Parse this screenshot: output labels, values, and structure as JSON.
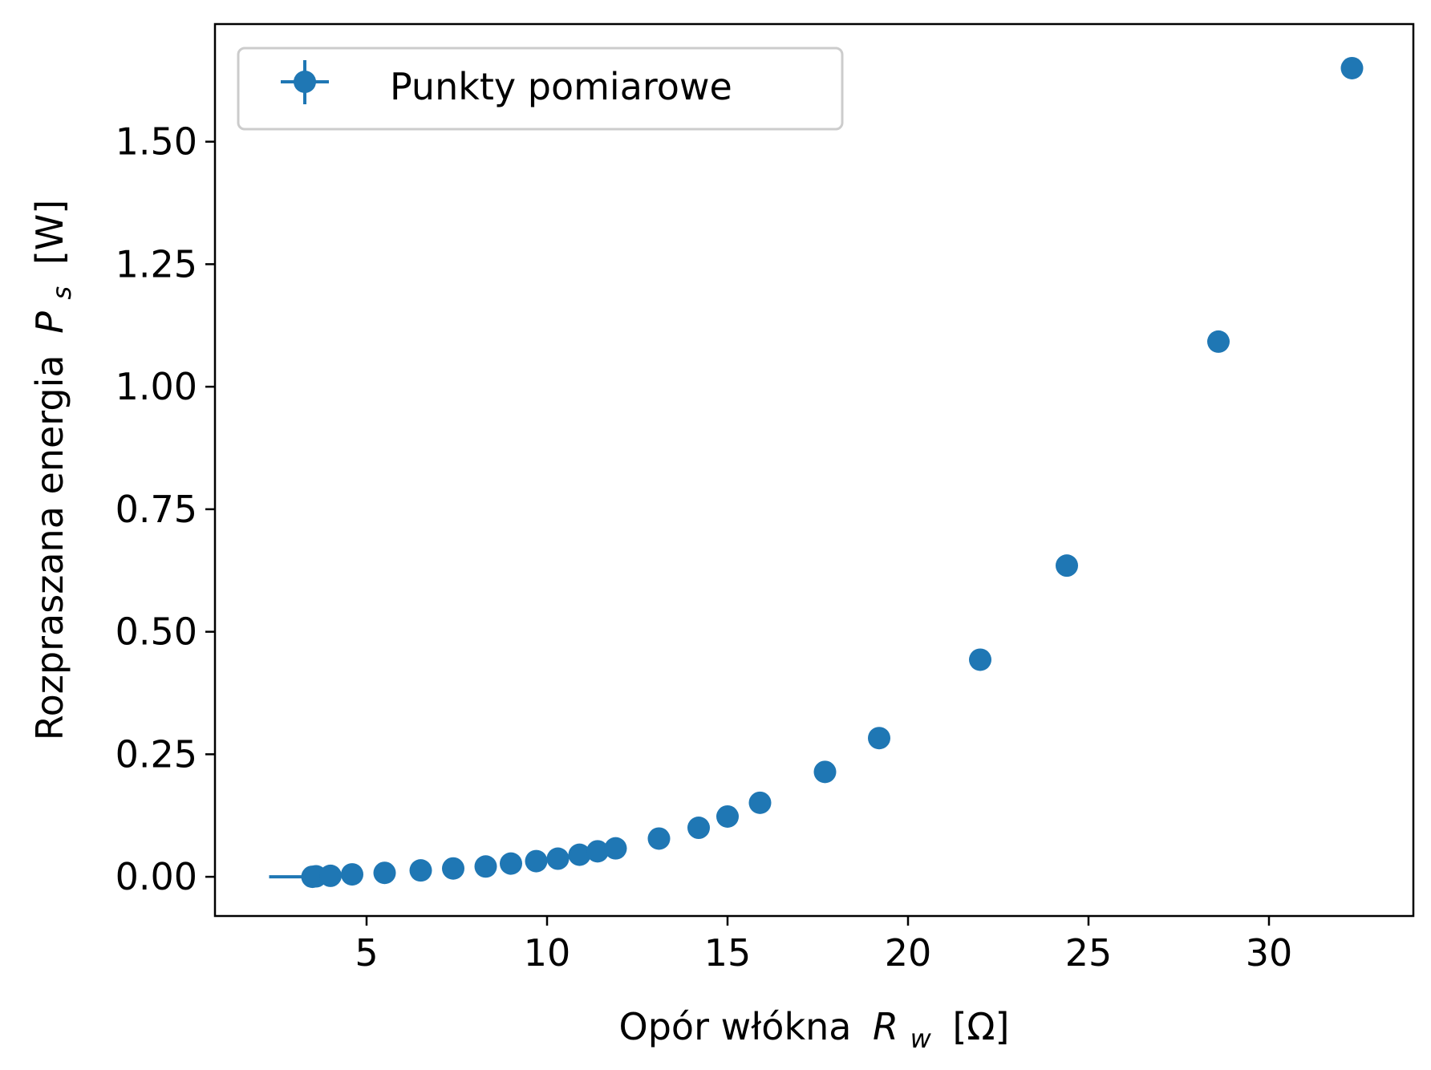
{
  "chart_data": {
    "type": "scatter",
    "xlabel": "Opór włókna",
    "xlabel_symbol": "R",
    "xlabel_sub": "w",
    "xlabel_unit": "[Ω]",
    "ylabel": "Rozpraszana energia",
    "ylabel_symbol": "P",
    "ylabel_sub": "s",
    "ylabel_unit": "[W]",
    "xlim": [
      0.8,
      34.0
    ],
    "ylim": [
      -0.08,
      1.74
    ],
    "xticks": [
      5,
      10,
      15,
      20,
      25,
      30
    ],
    "xtick_labels": [
      "5",
      "10",
      "15",
      "20",
      "25",
      "30"
    ],
    "yticks": [
      0.0,
      0.25,
      0.5,
      0.75,
      1.0,
      1.25,
      1.5
    ],
    "ytick_labels": [
      "0.00",
      "0.25",
      "0.50",
      "0.75",
      "1.00",
      "1.25",
      "1.50"
    ],
    "grid": false,
    "legend_position": "top-left",
    "series": [
      {
        "name": "Punkty pomiarowe",
        "color": "#1f77b4",
        "marker": "circle",
        "x": [
          3.5,
          3.6,
          4.0,
          4.6,
          5.5,
          6.5,
          7.4,
          8.3,
          9.0,
          9.7,
          10.3,
          10.9,
          11.4,
          11.9,
          13.1,
          14.2,
          15.0,
          15.9,
          17.7,
          19.2,
          22.0,
          24.4,
          28.6,
          32.3
        ],
        "y": [
          0.0,
          0.001,
          0.002,
          0.005,
          0.008,
          0.013,
          0.017,
          0.021,
          0.027,
          0.032,
          0.037,
          0.045,
          0.052,
          0.058,
          0.078,
          0.1,
          0.123,
          0.151,
          0.214,
          0.283,
          0.443,
          0.635,
          1.092,
          1.65
        ],
        "xerr_left": [
          1.2,
          0.3,
          0,
          0,
          0,
          0,
          0,
          0,
          0,
          0,
          0,
          0,
          0,
          0,
          0,
          0,
          0,
          0,
          0,
          0,
          0,
          0,
          0,
          0
        ],
        "xerr_right": [
          0,
          0,
          0,
          0,
          0,
          0,
          0,
          0,
          0,
          0,
          0,
          0,
          0,
          0,
          0,
          0,
          0,
          0,
          0,
          0,
          0,
          0,
          0,
          0
        ]
      }
    ]
  }
}
